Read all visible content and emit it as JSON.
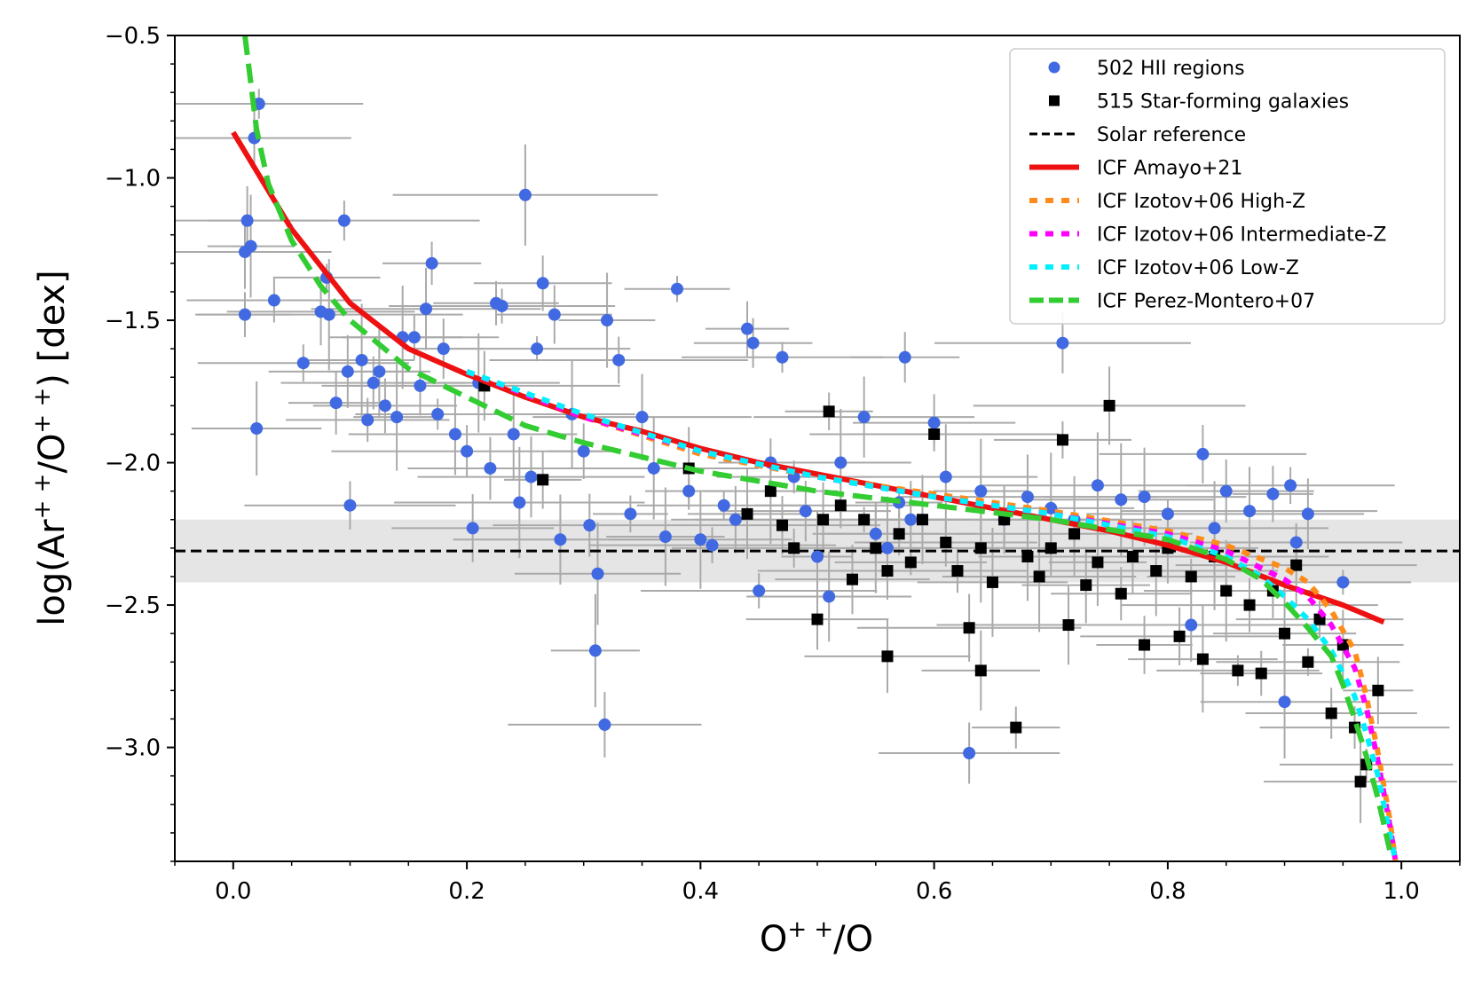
{
  "chart_data": {
    "type": "scatter",
    "xlabel": "O⁺⁺/O",
    "ylabel": "log(Ar⁺⁺/O⁺⁺) [dex]",
    "xlim": [
      -0.05,
      1.05
    ],
    "ylim": [
      -3.4,
      -0.5
    ],
    "x_ticks": [
      0.0,
      0.2,
      0.4,
      0.6,
      0.8,
      1.0
    ],
    "x_tick_labels": [
      "0.0",
      "0.2",
      "0.4",
      "0.6",
      "0.8",
      "1.0"
    ],
    "y_ticks": [
      -3.0,
      -2.5,
      -2.0,
      -1.5,
      -1.0,
      -0.5
    ],
    "y_tick_labels": [
      "−3.0",
      "−2.5",
      "−2.0",
      "−1.5",
      "−1.0",
      "−0.5"
    ],
    "legend_position": "top-right",
    "solar_reference": {
      "y": -2.31,
      "band": [
        -2.42,
        -2.2
      ]
    },
    "series": [
      {
        "name": "502 HII regions",
        "kind": "points",
        "marker": "circle",
        "color": "#4169e1",
        "points": [
          [
            0.01,
            -1.26
          ],
          [
            0.01,
            -1.48
          ],
          [
            0.012,
            -1.15
          ],
          [
            0.015,
            -1.24
          ],
          [
            0.018,
            -0.86
          ],
          [
            0.02,
            -1.88
          ],
          [
            0.022,
            -0.74
          ],
          [
            0.035,
            -1.43
          ],
          [
            0.06,
            -1.65
          ],
          [
            0.075,
            -1.47
          ],
          [
            0.08,
            -1.35
          ],
          [
            0.082,
            -1.48
          ],
          [
            0.088,
            -1.79
          ],
          [
            0.095,
            -1.15
          ],
          [
            0.098,
            -1.68
          ],
          [
            0.1,
            -2.15
          ],
          [
            0.11,
            -1.64
          ],
          [
            0.115,
            -1.85
          ],
          [
            0.12,
            -1.72
          ],
          [
            0.125,
            -1.68
          ],
          [
            0.13,
            -1.8
          ],
          [
            0.14,
            -1.84
          ],
          [
            0.145,
            -1.56
          ],
          [
            0.155,
            -1.56
          ],
          [
            0.16,
            -1.73
          ],
          [
            0.165,
            -1.46
          ],
          [
            0.17,
            -1.3
          ],
          [
            0.175,
            -1.83
          ],
          [
            0.18,
            -1.6
          ],
          [
            0.19,
            -1.9
          ],
          [
            0.2,
            -1.96
          ],
          [
            0.205,
            -2.23
          ],
          [
            0.21,
            -1.72
          ],
          [
            0.22,
            -2.02
          ],
          [
            0.225,
            -1.44
          ],
          [
            0.23,
            -1.45
          ],
          [
            0.24,
            -1.9
          ],
          [
            0.245,
            -2.14
          ],
          [
            0.25,
            -1.06
          ],
          [
            0.255,
            -2.05
          ],
          [
            0.26,
            -1.6
          ],
          [
            0.265,
            -1.37
          ],
          [
            0.275,
            -1.48
          ],
          [
            0.28,
            -2.27
          ],
          [
            0.29,
            -1.83
          ],
          [
            0.3,
            -1.96
          ],
          [
            0.305,
            -2.22
          ],
          [
            0.31,
            -2.66
          ],
          [
            0.312,
            -2.39
          ],
          [
            0.318,
            -2.92
          ],
          [
            0.32,
            -1.5
          ],
          [
            0.33,
            -1.64
          ],
          [
            0.34,
            -2.18
          ],
          [
            0.35,
            -1.84
          ],
          [
            0.36,
            -2.02
          ],
          [
            0.37,
            -2.26
          ],
          [
            0.38,
            -1.39
          ],
          [
            0.39,
            -2.1
          ],
          [
            0.4,
            -2.27
          ],
          [
            0.41,
            -2.29
          ],
          [
            0.42,
            -2.15
          ],
          [
            0.43,
            -2.2
          ],
          [
            0.44,
            -1.53
          ],
          [
            0.445,
            -1.58
          ],
          [
            0.45,
            -2.45
          ],
          [
            0.46,
            -2.0
          ],
          [
            0.47,
            -1.63
          ],
          [
            0.48,
            -2.05
          ],
          [
            0.49,
            -2.17
          ],
          [
            0.5,
            -2.33
          ],
          [
            0.51,
            -2.47
          ],
          [
            0.52,
            -2.0
          ],
          [
            0.54,
            -1.84
          ],
          [
            0.55,
            -2.25
          ],
          [
            0.56,
            -2.3
          ],
          [
            0.57,
            -2.14
          ],
          [
            0.575,
            -1.63
          ],
          [
            0.58,
            -2.2
          ],
          [
            0.6,
            -1.86
          ],
          [
            0.61,
            -2.05
          ],
          [
            0.63,
            -3.02
          ],
          [
            0.64,
            -2.1
          ],
          [
            0.66,
            -2.2
          ],
          [
            0.68,
            -2.12
          ],
          [
            0.7,
            -2.16
          ],
          [
            0.71,
            -1.58
          ],
          [
            0.72,
            -2.2
          ],
          [
            0.74,
            -2.08
          ],
          [
            0.76,
            -2.13
          ],
          [
            0.78,
            -2.12
          ],
          [
            0.8,
            -2.18
          ],
          [
            0.82,
            -2.57
          ],
          [
            0.83,
            -1.97
          ],
          [
            0.84,
            -2.23
          ],
          [
            0.85,
            -2.1
          ],
          [
            0.87,
            -2.17
          ],
          [
            0.89,
            -2.11
          ],
          [
            0.9,
            -2.84
          ],
          [
            0.905,
            -2.08
          ],
          [
            0.91,
            -2.28
          ],
          [
            0.92,
            -2.18
          ],
          [
            0.95,
            -2.42
          ]
        ]
      },
      {
        "name": "515 Star-forming galaxies",
        "kind": "points",
        "marker": "square",
        "color": "#000000",
        "points": [
          [
            0.215,
            -1.73
          ],
          [
            0.265,
            -2.06
          ],
          [
            0.39,
            -2.02
          ],
          [
            0.44,
            -2.18
          ],
          [
            0.46,
            -2.1
          ],
          [
            0.47,
            -2.22
          ],
          [
            0.48,
            -2.3
          ],
          [
            0.5,
            -2.55
          ],
          [
            0.505,
            -2.2
          ],
          [
            0.51,
            -1.82
          ],
          [
            0.52,
            -2.15
          ],
          [
            0.53,
            -2.41
          ],
          [
            0.54,
            -2.2
          ],
          [
            0.55,
            -2.3
          ],
          [
            0.56,
            -2.68
          ],
          [
            0.56,
            -2.38
          ],
          [
            0.57,
            -2.25
          ],
          [
            0.58,
            -2.35
          ],
          [
            0.59,
            -2.2
          ],
          [
            0.6,
            -1.9
          ],
          [
            0.61,
            -2.28
          ],
          [
            0.62,
            -2.38
          ],
          [
            0.63,
            -2.58
          ],
          [
            0.64,
            -2.73
          ],
          [
            0.64,
            -2.3
          ],
          [
            0.65,
            -2.42
          ],
          [
            0.66,
            -2.2
          ],
          [
            0.67,
            -2.93
          ],
          [
            0.68,
            -2.33
          ],
          [
            0.69,
            -2.4
          ],
          [
            0.7,
            -2.3
          ],
          [
            0.71,
            -1.92
          ],
          [
            0.715,
            -2.57
          ],
          [
            0.72,
            -2.25
          ],
          [
            0.73,
            -2.43
          ],
          [
            0.74,
            -2.35
          ],
          [
            0.75,
            -1.8
          ],
          [
            0.76,
            -2.46
          ],
          [
            0.77,
            -2.33
          ],
          [
            0.78,
            -2.64
          ],
          [
            0.79,
            -2.38
          ],
          [
            0.8,
            -2.3
          ],
          [
            0.81,
            -2.61
          ],
          [
            0.82,
            -2.4
          ],
          [
            0.83,
            -2.69
          ],
          [
            0.84,
            -2.33
          ],
          [
            0.85,
            -2.45
          ],
          [
            0.86,
            -2.73
          ],
          [
            0.87,
            -2.5
          ],
          [
            0.88,
            -2.74
          ],
          [
            0.89,
            -2.45
          ],
          [
            0.9,
            -2.6
          ],
          [
            0.91,
            -2.36
          ],
          [
            0.92,
            -2.7
          ],
          [
            0.93,
            -2.55
          ],
          [
            0.94,
            -2.88
          ],
          [
            0.95,
            -2.64
          ],
          [
            0.96,
            -2.93
          ],
          [
            0.965,
            -3.12
          ],
          [
            0.97,
            -3.06
          ],
          [
            0.98,
            -2.8
          ]
        ]
      },
      {
        "name": "Solar reference",
        "kind": "hline",
        "style": "dashed",
        "color": "#000000",
        "y": -2.31
      },
      {
        "name": "ICF Amayo+21",
        "kind": "line",
        "style": "solid",
        "color": "#ee1111",
        "x": [
          0.0,
          0.05,
          0.1,
          0.15,
          0.2,
          0.25,
          0.3,
          0.35,
          0.4,
          0.45,
          0.5,
          0.55,
          0.6,
          0.65,
          0.7,
          0.75,
          0.8,
          0.85,
          0.9,
          0.95,
          0.985
        ],
        "y": [
          -0.84,
          -1.18,
          -1.44,
          -1.6,
          -1.69,
          -1.77,
          -1.84,
          -1.89,
          -1.95,
          -2.0,
          -2.04,
          -2.08,
          -2.12,
          -2.16,
          -2.2,
          -2.24,
          -2.29,
          -2.35,
          -2.43,
          -2.5,
          -2.56
        ]
      },
      {
        "name": "ICF Izotov+06 High-Z",
        "kind": "line",
        "style": "dotted",
        "color": "#ff8c1a",
        "x": [
          0.2,
          0.3,
          0.4,
          0.5,
          0.6,
          0.7,
          0.8,
          0.85,
          0.9,
          0.92,
          0.94,
          0.96,
          0.97,
          0.98,
          0.99,
          0.995
        ],
        "y": [
          -1.68,
          -1.84,
          -1.97,
          -2.05,
          -2.11,
          -2.17,
          -2.24,
          -2.29,
          -2.37,
          -2.42,
          -2.52,
          -2.66,
          -2.82,
          -3.02,
          -3.25,
          -3.4
        ]
      },
      {
        "name": "ICF Izotov+06 Intermediate-Z",
        "kind": "line",
        "style": "dotted",
        "color": "#ff00ff",
        "x": [
          0.2,
          0.3,
          0.4,
          0.5,
          0.6,
          0.7,
          0.8,
          0.85,
          0.9,
          0.92,
          0.94,
          0.96,
          0.97,
          0.98,
          0.99,
          0.995
        ],
        "y": [
          -1.68,
          -1.84,
          -1.96,
          -2.05,
          -2.12,
          -2.18,
          -2.25,
          -2.31,
          -2.41,
          -2.47,
          -2.57,
          -2.72,
          -2.86,
          -3.05,
          -3.27,
          -3.4
        ]
      },
      {
        "name": "ICF Izotov+06 Low-Z",
        "kind": "line",
        "style": "dotted",
        "color": "#00f0ff",
        "x": [
          0.2,
          0.3,
          0.4,
          0.5,
          0.6,
          0.7,
          0.8,
          0.85,
          0.88,
          0.9,
          0.92,
          0.94,
          0.96,
          0.97,
          0.98,
          0.99,
          0.995
        ],
        "y": [
          -1.68,
          -1.83,
          -1.96,
          -2.05,
          -2.12,
          -2.18,
          -2.26,
          -2.33,
          -2.4,
          -2.47,
          -2.55,
          -2.66,
          -2.82,
          -2.95,
          -3.1,
          -3.3,
          -3.4
        ]
      },
      {
        "name": "ICF Perez-Montero+07",
        "kind": "line",
        "style": "dashed",
        "color": "#33cc33",
        "x": [
          0.01,
          0.02,
          0.03,
          0.05,
          0.075,
          0.1,
          0.15,
          0.2,
          0.25,
          0.3,
          0.4,
          0.5,
          0.6,
          0.7,
          0.8,
          0.85,
          0.88,
          0.9,
          0.92,
          0.94,
          0.95,
          0.96,
          0.97,
          0.98,
          0.99
        ],
        "y": [
          -0.5,
          -0.83,
          -1.02,
          -1.22,
          -1.38,
          -1.5,
          -1.67,
          -1.77,
          -1.87,
          -1.93,
          -2.03,
          -2.1,
          -2.15,
          -2.2,
          -2.27,
          -2.34,
          -2.41,
          -2.49,
          -2.58,
          -2.68,
          -2.78,
          -2.9,
          -3.03,
          -3.18,
          -3.36
        ]
      }
    ]
  }
}
